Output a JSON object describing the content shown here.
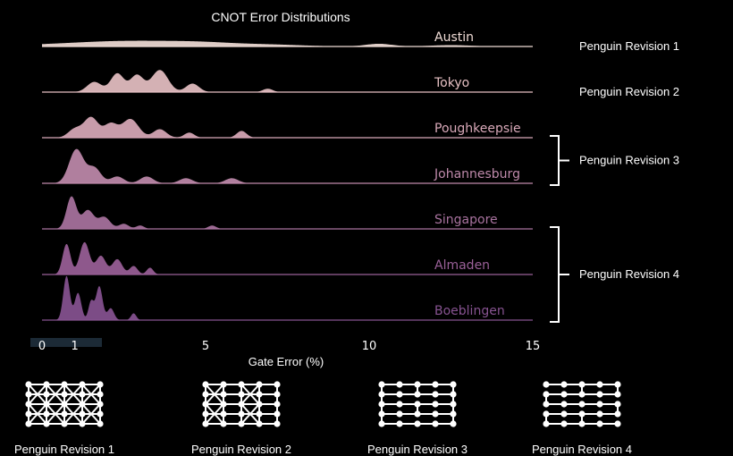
{
  "chart_data": {
    "type": "area",
    "title": "CNOT Error Distributions",
    "xlabel": "Gate Error (%)",
    "ylabel": "",
    "xlim": [
      0,
      15
    ],
    "xticks": [
      "0",
      "1",
      "5",
      "10",
      "15"
    ],
    "xtick_values": [
      0,
      1,
      5,
      10,
      15
    ],
    "grid": false,
    "series": [
      {
        "name": "Austin",
        "color": "#f0dcd6",
        "peaks": [
          [
            1.2,
            0.06,
            2.0
          ],
          [
            3.0,
            0.12,
            1.6
          ],
          [
            5.0,
            0.07,
            1.0
          ],
          [
            7.0,
            0.05,
            1.0
          ],
          [
            10.3,
            0.08,
            0.4
          ],
          [
            12.5,
            0.04,
            0.6
          ]
        ]
      },
      {
        "name": "Tokyo",
        "color": "#e6c0c3",
        "peaks": [
          [
            1.6,
            0.3,
            0.22
          ],
          [
            2.3,
            0.55,
            0.2
          ],
          [
            2.9,
            0.5,
            0.2
          ],
          [
            3.6,
            0.65,
            0.25
          ],
          [
            4.6,
            0.25,
            0.2
          ],
          [
            6.9,
            0.1,
            0.15
          ]
        ]
      },
      {
        "name": "Poughkeepsie",
        "color": "#d9a9b9",
        "peaks": [
          [
            1.0,
            0.25,
            0.2
          ],
          [
            1.5,
            0.6,
            0.22
          ],
          [
            2.1,
            0.4,
            0.2
          ],
          [
            2.7,
            0.55,
            0.25
          ],
          [
            3.6,
            0.25,
            0.2
          ],
          [
            4.5,
            0.15,
            0.15
          ],
          [
            6.1,
            0.2,
            0.15
          ]
        ]
      },
      {
        "name": "Johannesburg",
        "color": "#bf8aab",
        "peaks": [
          [
            1.05,
            1.0,
            0.22
          ],
          [
            1.6,
            0.45,
            0.2
          ],
          [
            2.3,
            0.2,
            0.2
          ],
          [
            3.2,
            0.2,
            0.2
          ],
          [
            4.4,
            0.15,
            0.2
          ],
          [
            5.8,
            0.15,
            0.2
          ]
        ]
      },
      {
        "name": "Singapore",
        "color": "#a9739f",
        "peaks": [
          [
            0.9,
            0.95,
            0.15
          ],
          [
            1.4,
            0.55,
            0.18
          ],
          [
            1.9,
            0.35,
            0.18
          ],
          [
            2.5,
            0.15,
            0.15
          ],
          [
            3.0,
            0.1,
            0.12
          ],
          [
            5.2,
            0.1,
            0.12
          ]
        ]
      },
      {
        "name": "Almaden",
        "color": "#9a6098",
        "peaks": [
          [
            0.75,
            0.9,
            0.12
          ],
          [
            1.3,
            0.95,
            0.15
          ],
          [
            1.8,
            0.55,
            0.15
          ],
          [
            2.3,
            0.45,
            0.15
          ],
          [
            2.8,
            0.25,
            0.12
          ],
          [
            3.3,
            0.2,
            0.1
          ]
        ]
      },
      {
        "name": "Boeblingen",
        "color": "#875391",
        "peaks": [
          [
            0.75,
            1.3,
            0.1
          ],
          [
            1.1,
            0.8,
            0.1
          ],
          [
            1.5,
            0.55,
            0.08
          ],
          [
            1.75,
            1.0,
            0.1
          ],
          [
            2.1,
            0.35,
            0.1
          ],
          [
            2.8,
            0.2,
            0.08
          ]
        ]
      }
    ]
  },
  "revisions": [
    {
      "label": "Penguin Revision 1",
      "devices": [
        "Austin"
      ]
    },
    {
      "label": "Penguin Revision 2",
      "devices": [
        "Tokyo"
      ]
    },
    {
      "label": "Penguin Revision 3",
      "devices": [
        "Poughkeepsie",
        "Johannesburg"
      ]
    },
    {
      "label": "Penguin Revision 4",
      "devices": [
        "Singapore",
        "Almaden",
        "Boeblingen"
      ]
    }
  ],
  "topologies": [
    {
      "label": "Penguin Revision 1"
    },
    {
      "label": "Penguin Revision 2"
    },
    {
      "label": "Penguin Revision 3"
    },
    {
      "label": "Penguin Revision 4"
    }
  ]
}
